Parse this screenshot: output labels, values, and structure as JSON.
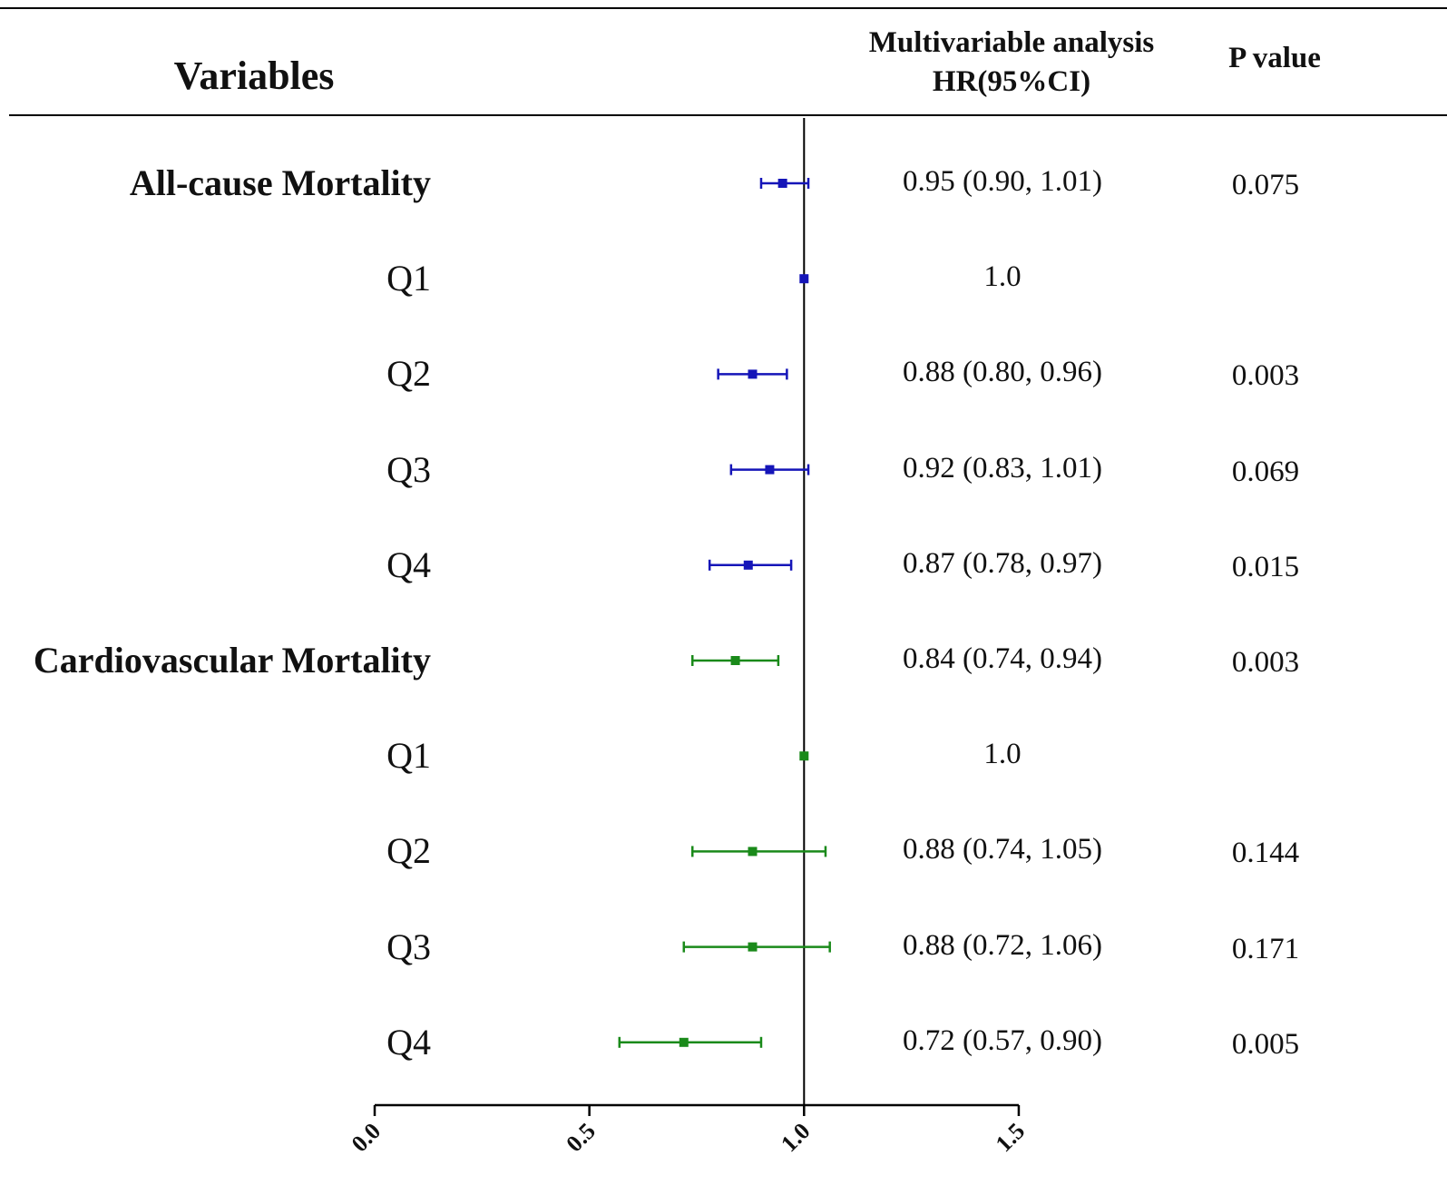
{
  "header": {
    "variables": "Variables",
    "hr_line1": "Multivariable analysis",
    "hr_line2": "HR(95%CI)",
    "p_value": "P value"
  },
  "colors": {
    "all_cause": "#1515b8",
    "cardiovascular": "#1a8a1a",
    "axis": "#000000"
  },
  "rows": [
    {
      "label": "All-cause Mortality",
      "group": true,
      "hr_text": "0.95 (0.90, 1.01)",
      "p": "0.075"
    },
    {
      "label": "Q1",
      "group": false,
      "hr_text": "1.0",
      "p": ""
    },
    {
      "label": "Q2",
      "group": false,
      "hr_text": "0.88 (0.80, 0.96)",
      "p": "0.003"
    },
    {
      "label": "Q3",
      "group": false,
      "hr_text": "0.92 (0.83, 1.01)",
      "p": "0.069"
    },
    {
      "label": "Q4",
      "group": false,
      "hr_text": "0.87 (0.78, 0.97)",
      "p": "0.015"
    },
    {
      "label": "Cardiovascular Mortality",
      "group": true,
      "hr_text": "0.84 (0.74, 0.94)",
      "p": "0.003"
    },
    {
      "label": "Q1",
      "group": false,
      "hr_text": "1.0",
      "p": ""
    },
    {
      "label": "Q2",
      "group": false,
      "hr_text": "0.88 (0.74, 1.05)",
      "p": "0.144"
    },
    {
      "label": "Q3",
      "group": false,
      "hr_text": "0.88 (0.72, 1.06)",
      "p": "0.171"
    },
    {
      "label": "Q4",
      "group": false,
      "hr_text": "0.72 (0.57, 0.90)",
      "p": "0.005"
    }
  ],
  "chart_data": {
    "type": "forest",
    "title": "",
    "xlabel": "",
    "xlim": [
      0.0,
      1.5
    ],
    "x_ticks": [
      "0.0",
      "0.5",
      "1.0",
      "1.5"
    ],
    "x_tick_values": [
      0.0,
      0.5,
      1.0,
      1.5
    ],
    "reference_line": 1.0,
    "series": [
      {
        "name": "All-cause Mortality",
        "color": "#1515b8",
        "points": [
          {
            "label": "All-cause Mortality",
            "hr": 0.95,
            "lower": 0.9,
            "upper": 1.01
          },
          {
            "label": "Q1",
            "hr": 1.0,
            "lower": 1.0,
            "upper": 1.0
          },
          {
            "label": "Q2",
            "hr": 0.88,
            "lower": 0.8,
            "upper": 0.96
          },
          {
            "label": "Q3",
            "hr": 0.92,
            "lower": 0.83,
            "upper": 1.01
          },
          {
            "label": "Q4",
            "hr": 0.87,
            "lower": 0.78,
            "upper": 0.97
          }
        ]
      },
      {
        "name": "Cardiovascular Mortality",
        "color": "#1a8a1a",
        "points": [
          {
            "label": "Cardiovascular Mortality",
            "hr": 0.84,
            "lower": 0.74,
            "upper": 0.94
          },
          {
            "label": "Q1",
            "hr": 1.0,
            "lower": 1.0,
            "upper": 1.0
          },
          {
            "label": "Q2",
            "hr": 0.88,
            "lower": 0.74,
            "upper": 1.05
          },
          {
            "label": "Q3",
            "hr": 0.88,
            "lower": 0.72,
            "upper": 1.06
          },
          {
            "label": "Q4",
            "hr": 0.72,
            "lower": 0.57,
            "upper": 0.9
          }
        ]
      }
    ]
  }
}
